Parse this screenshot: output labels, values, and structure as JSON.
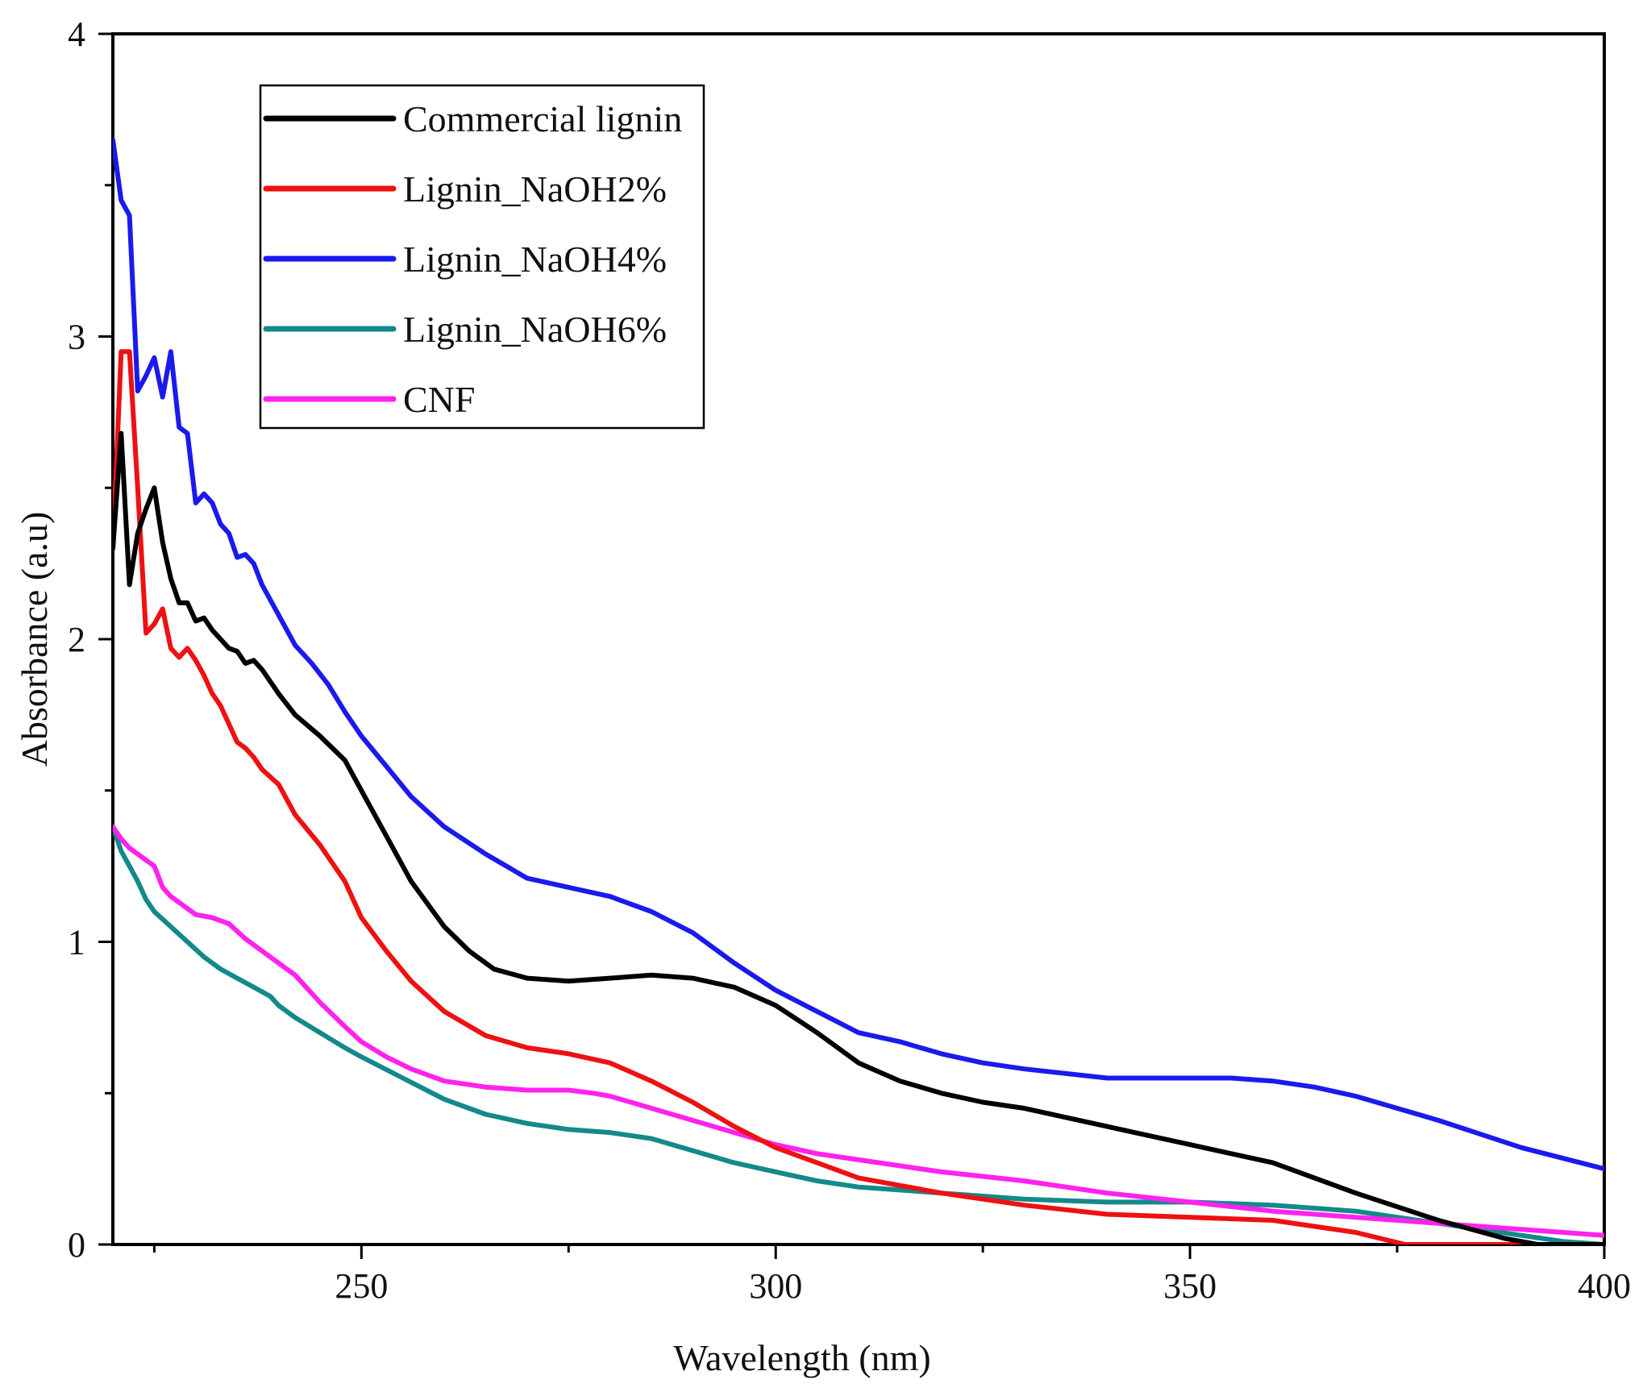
{
  "chart_data": {
    "type": "line",
    "title": "",
    "xlabel": "Wavelength (nm)",
    "ylabel": "Absorbance (a.u)",
    "xlim": [
      220,
      400
    ],
    "ylim": [
      0,
      4
    ],
    "x_ticks": [
      250,
      300,
      350,
      400
    ],
    "y_ticks": [
      0,
      1,
      2,
      3,
      4
    ],
    "legend_position": "top-left",
    "grid": false,
    "series": [
      {
        "name": "Commercial lignin",
        "color": "#000000",
        "points": [
          [
            220,
            2.3
          ],
          [
            221,
            2.68
          ],
          [
            222,
            2.18
          ],
          [
            223,
            2.35
          ],
          [
            224,
            2.43
          ],
          [
            225,
            2.5
          ],
          [
            226,
            2.32
          ],
          [
            227,
            2.2
          ],
          [
            228,
            2.12
          ],
          [
            229,
            2.12
          ],
          [
            230,
            2.06
          ],
          [
            231,
            2.07
          ],
          [
            232,
            2.03
          ],
          [
            233,
            2.0
          ],
          [
            234,
            1.97
          ],
          [
            235,
            1.96
          ],
          [
            236,
            1.92
          ],
          [
            237,
            1.93
          ],
          [
            238,
            1.9
          ],
          [
            240,
            1.82
          ],
          [
            242,
            1.75
          ],
          [
            245,
            1.68
          ],
          [
            248,
            1.6
          ],
          [
            250,
            1.5
          ],
          [
            253,
            1.35
          ],
          [
            256,
            1.2
          ],
          [
            260,
            1.05
          ],
          [
            263,
            0.97
          ],
          [
            266,
            0.91
          ],
          [
            270,
            0.88
          ],
          [
            275,
            0.87
          ],
          [
            280,
            0.88
          ],
          [
            285,
            0.89
          ],
          [
            290,
            0.88
          ],
          [
            295,
            0.85
          ],
          [
            300,
            0.79
          ],
          [
            305,
            0.7
          ],
          [
            310,
            0.6
          ],
          [
            315,
            0.54
          ],
          [
            320,
            0.5
          ],
          [
            325,
            0.47
          ],
          [
            330,
            0.45
          ],
          [
            340,
            0.39
          ],
          [
            350,
            0.33
          ],
          [
            360,
            0.27
          ],
          [
            370,
            0.17
          ],
          [
            380,
            0.08
          ],
          [
            388,
            0.02
          ],
          [
            392,
            0.0
          ],
          [
            400,
            0.0
          ]
        ]
      },
      {
        "name": "Lignin_NaOH2%",
        "color": "#ee1111",
        "points": [
          [
            220,
            2.3
          ],
          [
            221,
            2.95
          ],
          [
            222,
            2.95
          ],
          [
            223,
            2.5
          ],
          [
            224,
            2.02
          ],
          [
            225,
            2.05
          ],
          [
            226,
            2.1
          ],
          [
            227,
            1.97
          ],
          [
            228,
            1.94
          ],
          [
            229,
            1.97
          ],
          [
            230,
            1.93
          ],
          [
            231,
            1.88
          ],
          [
            232,
            1.82
          ],
          [
            233,
            1.78
          ],
          [
            234,
            1.72
          ],
          [
            235,
            1.66
          ],
          [
            236,
            1.64
          ],
          [
            237,
            1.61
          ],
          [
            238,
            1.57
          ],
          [
            240,
            1.52
          ],
          [
            242,
            1.42
          ],
          [
            245,
            1.32
          ],
          [
            248,
            1.2
          ],
          [
            250,
            1.08
          ],
          [
            253,
            0.97
          ],
          [
            256,
            0.87
          ],
          [
            260,
            0.77
          ],
          [
            265,
            0.69
          ],
          [
            270,
            0.65
          ],
          [
            275,
            0.63
          ],
          [
            280,
            0.6
          ],
          [
            285,
            0.54
          ],
          [
            290,
            0.47
          ],
          [
            295,
            0.39
          ],
          [
            300,
            0.32
          ],
          [
            305,
            0.27
          ],
          [
            310,
            0.22
          ],
          [
            320,
            0.17
          ],
          [
            330,
            0.13
          ],
          [
            340,
            0.1
          ],
          [
            350,
            0.09
          ],
          [
            360,
            0.08
          ],
          [
            370,
            0.04
          ],
          [
            376,
            0.0
          ],
          [
            400,
            0.0
          ]
        ]
      },
      {
        "name": "Lignin_NaOH4%",
        "color": "#1a1aee",
        "points": [
          [
            220,
            3.65
          ],
          [
            221,
            3.45
          ],
          [
            222,
            3.4
          ],
          [
            223,
            2.82
          ],
          [
            224,
            2.87
          ],
          [
            225,
            2.93
          ],
          [
            226,
            2.8
          ],
          [
            227,
            2.95
          ],
          [
            228,
            2.7
          ],
          [
            229,
            2.68
          ],
          [
            230,
            2.45
          ],
          [
            231,
            2.48
          ],
          [
            232,
            2.45
          ],
          [
            233,
            2.38
          ],
          [
            234,
            2.35
          ],
          [
            235,
            2.27
          ],
          [
            236,
            2.28
          ],
          [
            237,
            2.25
          ],
          [
            238,
            2.18
          ],
          [
            240,
            2.08
          ],
          [
            242,
            1.98
          ],
          [
            244,
            1.92
          ],
          [
            246,
            1.85
          ],
          [
            248,
            1.76
          ],
          [
            250,
            1.68
          ],
          [
            253,
            1.58
          ],
          [
            256,
            1.48
          ],
          [
            260,
            1.38
          ],
          [
            265,
            1.29
          ],
          [
            270,
            1.21
          ],
          [
            275,
            1.18
          ],
          [
            280,
            1.15
          ],
          [
            285,
            1.1
          ],
          [
            290,
            1.03
          ],
          [
            295,
            0.93
          ],
          [
            300,
            0.84
          ],
          [
            305,
            0.77
          ],
          [
            310,
            0.7
          ],
          [
            315,
            0.67
          ],
          [
            320,
            0.63
          ],
          [
            325,
            0.6
          ],
          [
            330,
            0.58
          ],
          [
            340,
            0.55
          ],
          [
            350,
            0.55
          ],
          [
            355,
            0.55
          ],
          [
            360,
            0.54
          ],
          [
            365,
            0.52
          ],
          [
            370,
            0.49
          ],
          [
            380,
            0.41
          ],
          [
            390,
            0.32
          ],
          [
            400,
            0.25
          ]
        ]
      },
      {
        "name": "Lignin_NaOH6%",
        "color": "#13898a",
        "points": [
          [
            220,
            1.38
          ],
          [
            221,
            1.3
          ],
          [
            222,
            1.25
          ],
          [
            223,
            1.2
          ],
          [
            224,
            1.14
          ],
          [
            225,
            1.1
          ],
          [
            227,
            1.05
          ],
          [
            229,
            1.0
          ],
          [
            231,
            0.95
          ],
          [
            233,
            0.91
          ],
          [
            235,
            0.88
          ],
          [
            237,
            0.85
          ],
          [
            239,
            0.82
          ],
          [
            240,
            0.79
          ],
          [
            242,
            0.75
          ],
          [
            245,
            0.7
          ],
          [
            248,
            0.65
          ],
          [
            250,
            0.62
          ],
          [
            255,
            0.55
          ],
          [
            260,
            0.48
          ],
          [
            265,
            0.43
          ],
          [
            270,
            0.4
          ],
          [
            275,
            0.38
          ],
          [
            280,
            0.37
          ],
          [
            285,
            0.35
          ],
          [
            290,
            0.31
          ],
          [
            295,
            0.27
          ],
          [
            300,
            0.24
          ],
          [
            305,
            0.21
          ],
          [
            310,
            0.19
          ],
          [
            315,
            0.18
          ],
          [
            320,
            0.17
          ],
          [
            330,
            0.15
          ],
          [
            340,
            0.14
          ],
          [
            350,
            0.14
          ],
          [
            360,
            0.13
          ],
          [
            370,
            0.11
          ],
          [
            380,
            0.07
          ],
          [
            390,
            0.03
          ],
          [
            395,
            0.01
          ],
          [
            400,
            0.0
          ]
        ]
      },
      {
        "name": "CNF",
        "color": "#ff22ee",
        "points": [
          [
            220,
            1.38
          ],
          [
            221,
            1.34
          ],
          [
            222,
            1.31
          ],
          [
            223,
            1.29
          ],
          [
            224,
            1.27
          ],
          [
            225,
            1.25
          ],
          [
            226,
            1.18
          ],
          [
            227,
            1.15
          ],
          [
            228,
            1.13
          ],
          [
            229,
            1.11
          ],
          [
            230,
            1.09
          ],
          [
            232,
            1.08
          ],
          [
            234,
            1.06
          ],
          [
            236,
            1.01
          ],
          [
            238,
            0.97
          ],
          [
            240,
            0.93
          ],
          [
            242,
            0.89
          ],
          [
            245,
            0.8
          ],
          [
            248,
            0.72
          ],
          [
            250,
            0.67
          ],
          [
            253,
            0.62
          ],
          [
            256,
            0.58
          ],
          [
            260,
            0.54
          ],
          [
            265,
            0.52
          ],
          [
            270,
            0.51
          ],
          [
            275,
            0.51
          ],
          [
            278,
            0.5
          ],
          [
            280,
            0.49
          ],
          [
            285,
            0.45
          ],
          [
            290,
            0.41
          ],
          [
            295,
            0.37
          ],
          [
            300,
            0.33
          ],
          [
            305,
            0.3
          ],
          [
            310,
            0.28
          ],
          [
            315,
            0.26
          ],
          [
            320,
            0.24
          ],
          [
            330,
            0.21
          ],
          [
            340,
            0.17
          ],
          [
            350,
            0.14
          ],
          [
            360,
            0.11
          ],
          [
            370,
            0.09
          ],
          [
            380,
            0.07
          ],
          [
            390,
            0.05
          ],
          [
            400,
            0.03
          ]
        ]
      }
    ]
  }
}
